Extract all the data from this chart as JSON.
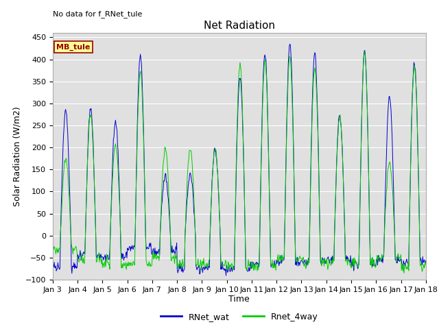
{
  "title": "Net Radiation",
  "xlabel": "Time",
  "ylabel": "Solar Radiation (W/m2)",
  "annotation_text": "No data for f_RNet_tule",
  "legend_label1": "RNet_wat",
  "legend_label2": "Rnet_4way",
  "legend_box_label": "MB_tule",
  "color1": "#0000cc",
  "color2": "#00cc00",
  "ylim": [
    -100,
    460
  ],
  "yticks": [
    -100,
    -50,
    0,
    50,
    100,
    150,
    200,
    250,
    300,
    350,
    400,
    450
  ],
  "bg_color": "#e0e0e0",
  "title_fontsize": 11,
  "axis_fontsize": 9,
  "tick_fontsize": 8,
  "legend_box_color": "#ffff99",
  "legend_box_edge": "#990000"
}
